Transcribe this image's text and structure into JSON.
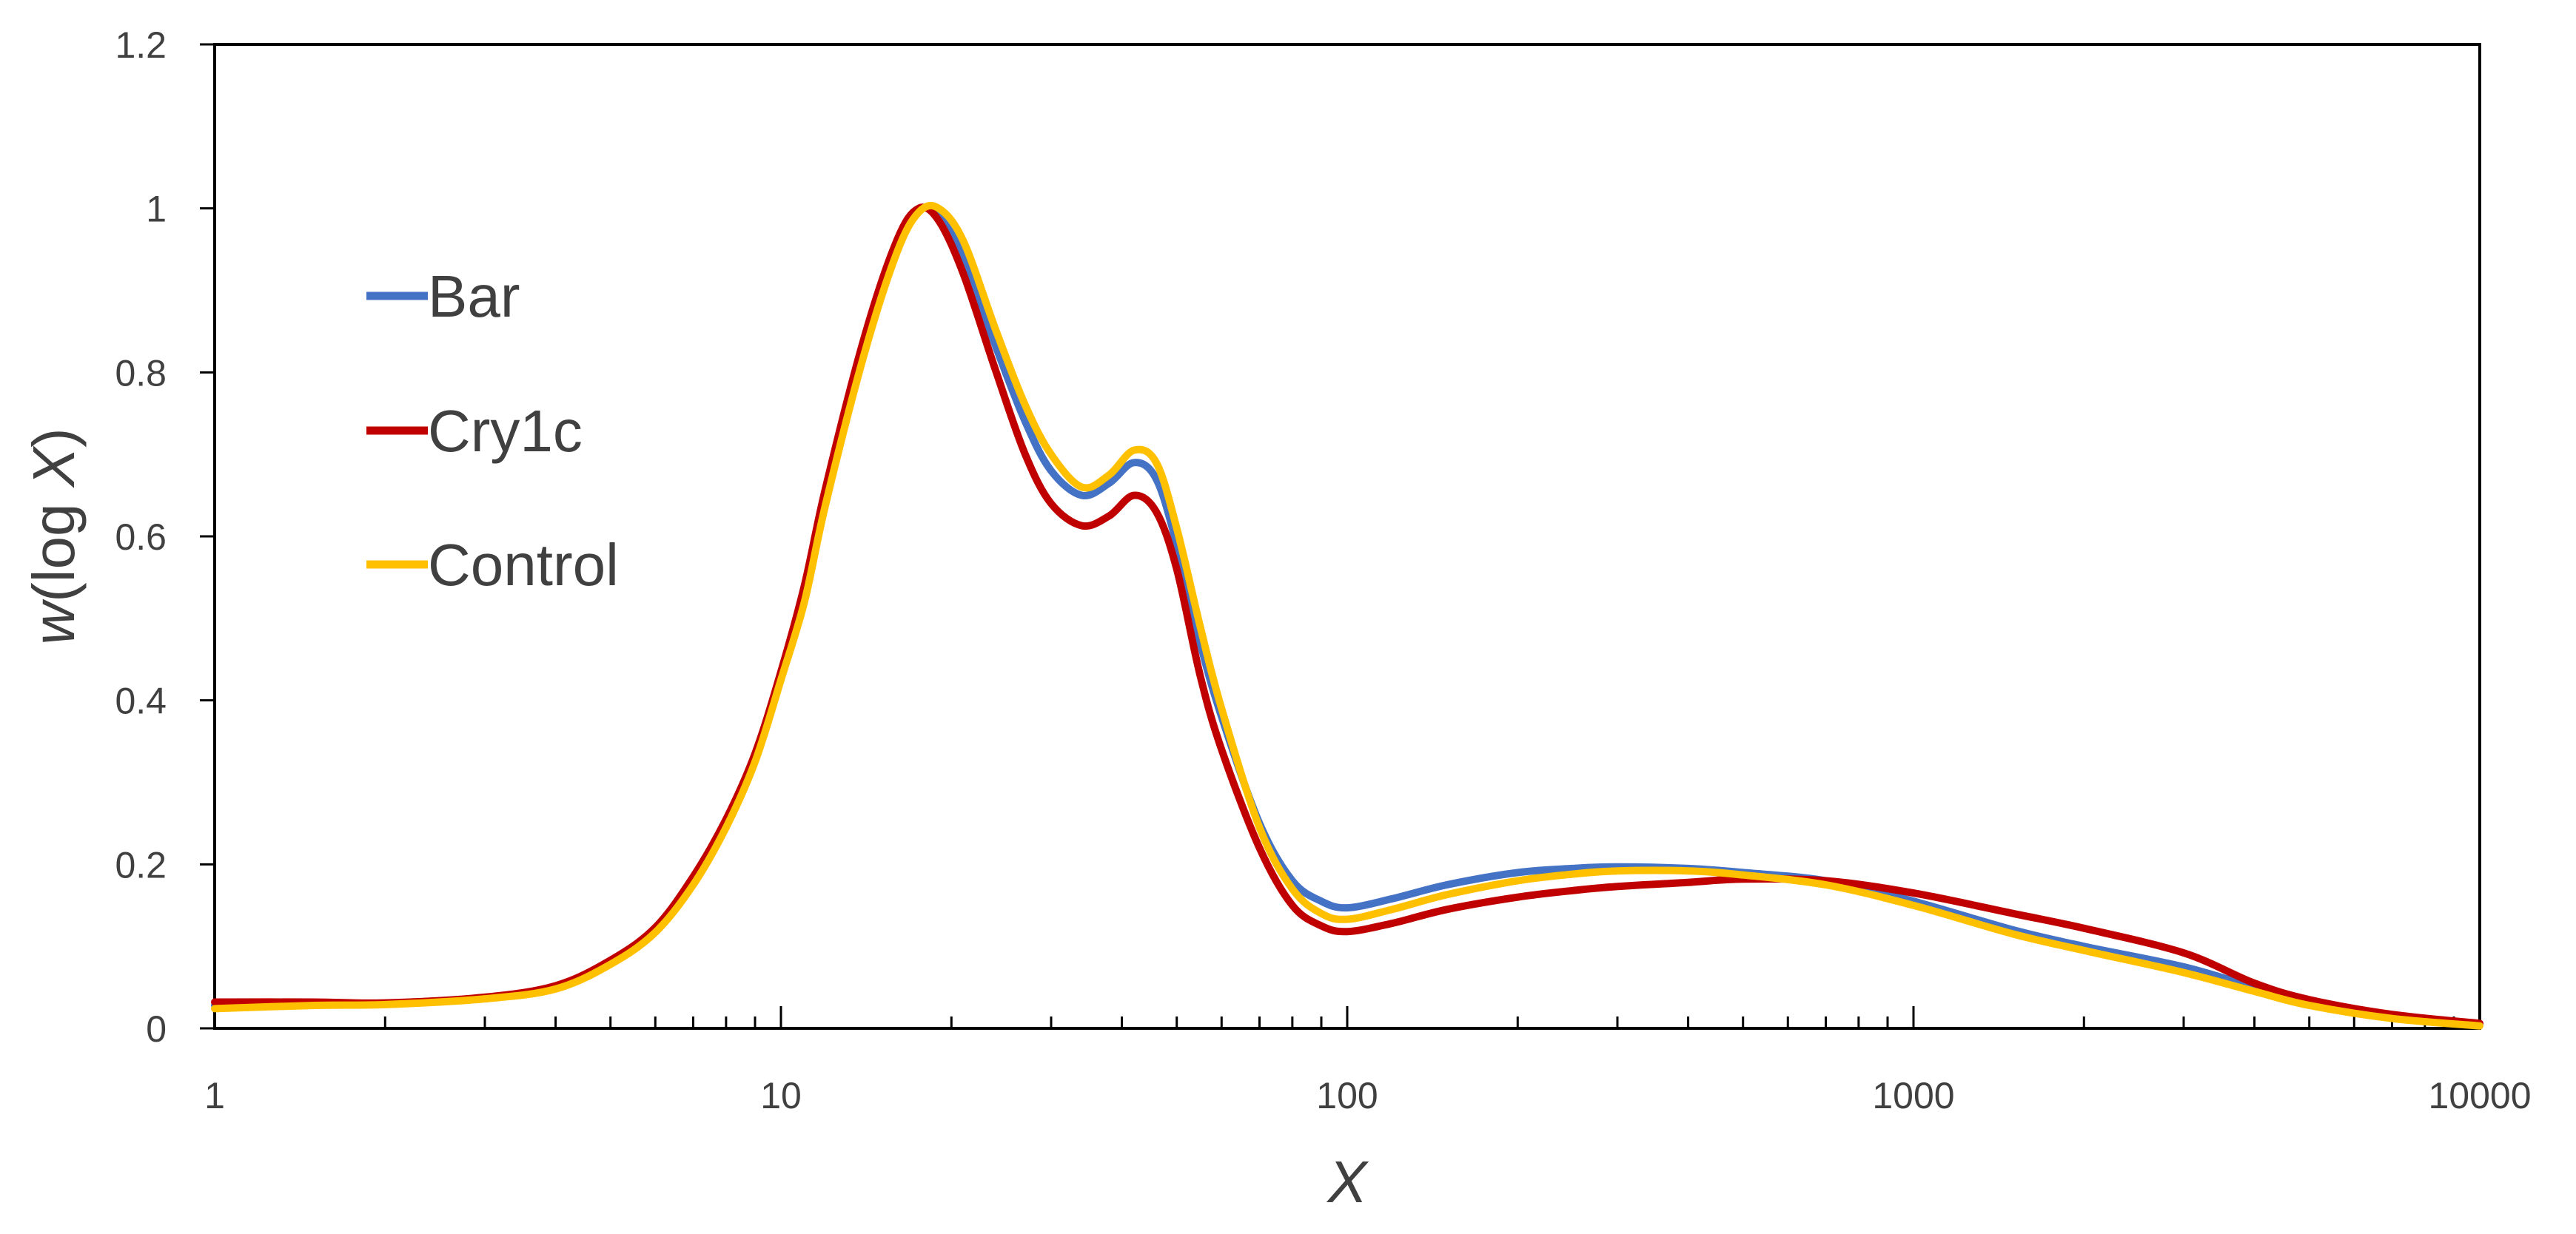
{
  "chart_data": {
    "type": "line",
    "title": "",
    "xlabel": "X",
    "ylabel_parts": {
      "italic_w": "w",
      "paren_open": "(log ",
      "italic_x": "X",
      "paren_close": ")"
    },
    "x_scale": "log",
    "xlim": [
      1,
      10000
    ],
    "ylim": [
      0,
      1.2
    ],
    "grid": false,
    "legend_position": "upper-left, inside plot",
    "x_ticks": [
      1,
      10,
      100,
      1000,
      10000
    ],
    "x_tick_labels": [
      "1",
      "10",
      "100",
      "1000",
      "10000"
    ],
    "y_ticks": [
      0,
      0.2,
      0.4,
      0.6,
      0.8,
      1,
      1.2
    ],
    "y_tick_labels": [
      "0",
      "0.2",
      "0.4",
      "0.6",
      "0.8",
      "1",
      "1.2"
    ],
    "x": [
      1,
      1.5,
      2,
      3,
      4,
      5,
      6,
      7,
      8,
      9,
      10,
      11,
      12,
      14,
      16,
      17.5,
      19,
      21,
      24,
      27,
      30,
      34,
      38,
      42,
      46,
      50,
      55,
      60,
      70,
      80,
      90,
      100,
      120,
      150,
      200,
      250,
      300,
      400,
      500,
      700,
      1000,
      1500,
      2000,
      3000,
      4000,
      5000,
      7000,
      10000
    ],
    "series": [
      {
        "name": "Bar",
        "color": "#4472C4",
        "values": [
          0.028,
          0.03,
          0.03,
          0.037,
          0.05,
          0.08,
          0.12,
          0.18,
          0.25,
          0.33,
          0.43,
          0.53,
          0.65,
          0.83,
          0.95,
          0.998,
          0.99,
          0.94,
          0.83,
          0.74,
          0.68,
          0.65,
          0.665,
          0.69,
          0.67,
          0.59,
          0.47,
          0.38,
          0.25,
          0.18,
          0.155,
          0.147,
          0.158,
          0.175,
          0.19,
          0.195,
          0.197,
          0.195,
          0.19,
          0.18,
          0.155,
          0.12,
          0.1,
          0.075,
          0.05,
          0.032,
          0.015,
          0.005
        ]
      },
      {
        "name": "Cry1c",
        "color": "#C00000",
        "values": [
          0.032,
          0.032,
          0.031,
          0.038,
          0.052,
          0.083,
          0.123,
          0.185,
          0.255,
          0.335,
          0.435,
          0.54,
          0.66,
          0.84,
          0.96,
          1.0,
          0.985,
          0.92,
          0.8,
          0.7,
          0.64,
          0.613,
          0.625,
          0.65,
          0.63,
          0.56,
          0.43,
          0.34,
          0.22,
          0.15,
          0.125,
          0.118,
          0.128,
          0.145,
          0.16,
          0.168,
          0.173,
          0.178,
          0.182,
          0.18,
          0.165,
          0.14,
          0.122,
          0.092,
          0.055,
          0.035,
          0.017,
          0.006
        ]
      },
      {
        "name": "Control",
        "color": "#FFC000",
        "values": [
          0.024,
          0.028,
          0.029,
          0.036,
          0.048,
          0.078,
          0.117,
          0.175,
          0.245,
          0.325,
          0.425,
          0.52,
          0.64,
          0.82,
          0.945,
          0.995,
          1.0,
          0.96,
          0.85,
          0.76,
          0.7,
          0.66,
          0.675,
          0.705,
          0.69,
          0.61,
          0.49,
          0.39,
          0.245,
          0.17,
          0.14,
          0.133,
          0.145,
          0.163,
          0.18,
          0.188,
          0.192,
          0.192,
          0.187,
          0.175,
          0.15,
          0.115,
          0.095,
          0.068,
          0.045,
          0.028,
          0.012,
          0.003
        ]
      }
    ]
  }
}
